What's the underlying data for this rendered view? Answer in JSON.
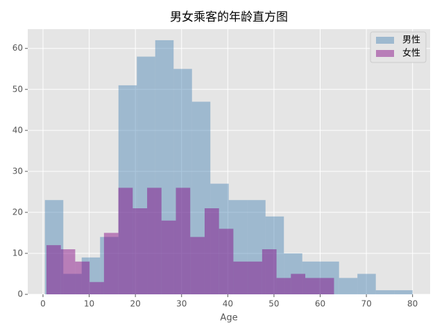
{
  "chart_data": {
    "type": "histogram",
    "title": "男女乘客的年龄直方图",
    "xlabel": "Age",
    "xlim": [
      -3.3,
      83.8
    ],
    "ylim": [
      0,
      64.7
    ],
    "xticks": [
      0,
      10,
      20,
      30,
      40,
      50,
      60,
      70,
      80
    ],
    "yticks": [
      0,
      10,
      20,
      30,
      40,
      50,
      60
    ],
    "grid": true,
    "legend": "upper right",
    "series": [
      {
        "name": "男性",
        "color": "#4682b4",
        "bins": [
          0.42,
          4.399,
          8.378,
          12.357,
          16.336,
          20.315,
          24.294,
          28.273,
          32.252,
          36.231,
          40.21,
          44.189,
          48.168,
          52.147,
          56.126,
          60.105,
          64.084,
          68.063,
          72.042,
          76.021,
          80
        ],
        "values": [
          23,
          5,
          9,
          14,
          51,
          58,
          62,
          55,
          47,
          27,
          23,
          23,
          19,
          10,
          8,
          8,
          4,
          5,
          1,
          1
        ]
      },
      {
        "name": "女性",
        "color": "#800080",
        "bins": [
          0.75,
          3.8625,
          6.975,
          10.0875,
          13.2,
          16.3125,
          19.425,
          22.5375,
          25.65,
          28.7625,
          31.875,
          34.9875,
          38.1,
          41.2125,
          44.325,
          47.4375,
          50.55,
          53.6625,
          56.775,
          59.8875,
          63
        ],
        "values": [
          12,
          11,
          8,
          3,
          15,
          26,
          21,
          26,
          18,
          26,
          14,
          21,
          16,
          8,
          8,
          11,
          4,
          5,
          4,
          4
        ]
      }
    ]
  }
}
